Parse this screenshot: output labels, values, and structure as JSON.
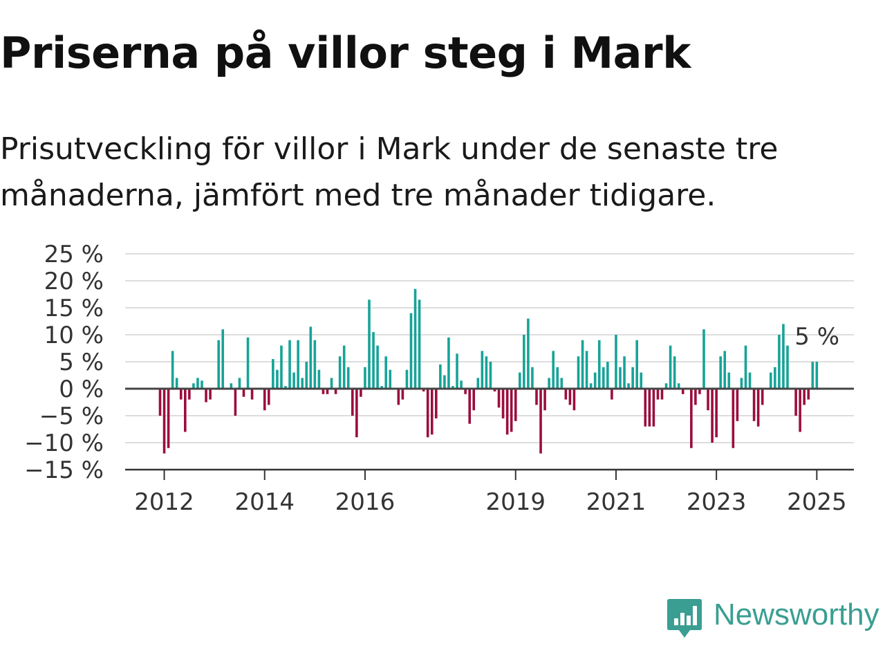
{
  "header": {
    "title": "Priserna på villor steg i Mark",
    "subtitle": "Prisutveckling för villor i Mark under de senaste tre månaderna, jämfört med tre månader tidigare."
  },
  "brand": {
    "name": "Newsworthy",
    "icon": "bar-chart-speech-bubble-icon",
    "color": "#3a9e92"
  },
  "colors": {
    "positive": "#17a398",
    "negative": "#9b0e3d",
    "grid": "#dddddd",
    "zero_line": "#444444"
  },
  "chart_data": {
    "type": "bar",
    "title": "Priserna på villor steg i Mark",
    "subtitle": "Prisutveckling för villor i Mark under de senaste tre månaderna, jämfört med tre månader tidigare.",
    "xlabel": "",
    "ylabel": "",
    "ylim": [
      -15,
      25
    ],
    "grid": true,
    "y_ticks": [
      {
        "value": 25,
        "label": "25 %"
      },
      {
        "value": 20,
        "label": "20 %"
      },
      {
        "value": 15,
        "label": "15 %"
      },
      {
        "value": 10,
        "label": "10 %"
      },
      {
        "value": 5,
        "label": "5 %"
      },
      {
        "value": 0,
        "label": "0 %"
      },
      {
        "value": -5,
        "label": "−5 %"
      },
      {
        "value": -10,
        "label": "−10 %"
      },
      {
        "value": -15,
        "label": "−15 %"
      }
    ],
    "x_start": "2011-12",
    "x_ticks": [
      {
        "date": "2012-01",
        "label": "2012"
      },
      {
        "date": "2014-01",
        "label": "2014"
      },
      {
        "date": "2016-01",
        "label": "2016"
      },
      {
        "date": "2019-01",
        "label": "2019"
      },
      {
        "date": "2021-01",
        "label": "2021"
      },
      {
        "date": "2023-01",
        "label": "2023"
      },
      {
        "date": "2025-01",
        "label": "2025"
      }
    ],
    "annotation": {
      "date": "2025-02",
      "value": 5,
      "label": "5 %"
    },
    "values": [
      -5,
      -12,
      -11,
      7,
      2,
      -2,
      -8,
      -2,
      1,
      2,
      1.5,
      -2.5,
      -2,
      0,
      9,
      11,
      0,
      1,
      -5,
      2,
      -1.5,
      9.5,
      -2,
      0,
      0,
      -4,
      -3,
      5.5,
      3.5,
      8,
      0.5,
      9,
      3,
      9,
      2,
      5,
      11.5,
      9,
      3.5,
      -1,
      -1,
      2,
      -1,
      6,
      8,
      4,
      -5,
      -9,
      -1.5,
      4,
      16.5,
      10.5,
      8,
      0.5,
      6,
      3.5,
      0,
      -3,
      -2,
      3.5,
      14,
      18.5,
      16.5,
      -0.5,
      -9,
      -8.5,
      -5.5,
      4.5,
      2.5,
      9.5,
      0.5,
      6.5,
      1.5,
      -1,
      -6.5,
      -4,
      2,
      7,
      6,
      5,
      -0.5,
      -3.5,
      -5.5,
      -8.5,
      -8,
      -6,
      3,
      10,
      13,
      4,
      -3,
      -12,
      -4,
      2,
      7,
      4,
      2,
      -2,
      -3,
      -4,
      6,
      9,
      7,
      1,
      3,
      9,
      4,
      5,
      -2,
      10,
      4,
      6,
      1,
      4,
      9,
      3,
      -7,
      -7,
      -7,
      -2,
      -2,
      1,
      8,
      6,
      1,
      -1,
      0,
      -11,
      -3,
      -1,
      11,
      -4,
      -10,
      -9,
      6,
      7,
      3,
      -11,
      -6,
      2,
      8,
      3,
      -6,
      -7,
      -3,
      0,
      3,
      4,
      10,
      12,
      8,
      0,
      -5,
      -8,
      -3,
      -2,
      5,
      5
    ]
  }
}
